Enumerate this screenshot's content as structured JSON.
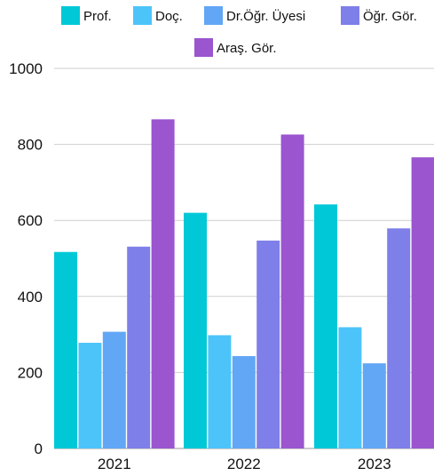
{
  "chart_data": {
    "type": "bar",
    "categories": [
      "2021",
      "2022",
      "2023"
    ],
    "series": [
      {
        "name": "Prof.",
        "color": "#00c8d7",
        "values": [
          517,
          620,
          642
        ]
      },
      {
        "name": "Doç.",
        "color": "#4cc4fa",
        "values": [
          278,
          298,
          319
        ]
      },
      {
        "name": "Dr.Öğr. Üyesi",
        "color": "#62a6f6",
        "values": [
          307,
          243,
          224
        ]
      },
      {
        "name": "Öğr. Gör.",
        "color": "#7e7fe8",
        "values": [
          531,
          547,
          579
        ]
      },
      {
        "name": "Araş. Gör.",
        "color": "#9a55cf",
        "values": [
          866,
          826,
          766
        ]
      }
    ],
    "yticks": [
      0,
      200,
      400,
      600,
      800,
      1000
    ],
    "ylim": [
      0,
      1000
    ],
    "grid": true,
    "legend_position": "top",
    "title": "",
    "xlabel": "",
    "ylabel": ""
  }
}
